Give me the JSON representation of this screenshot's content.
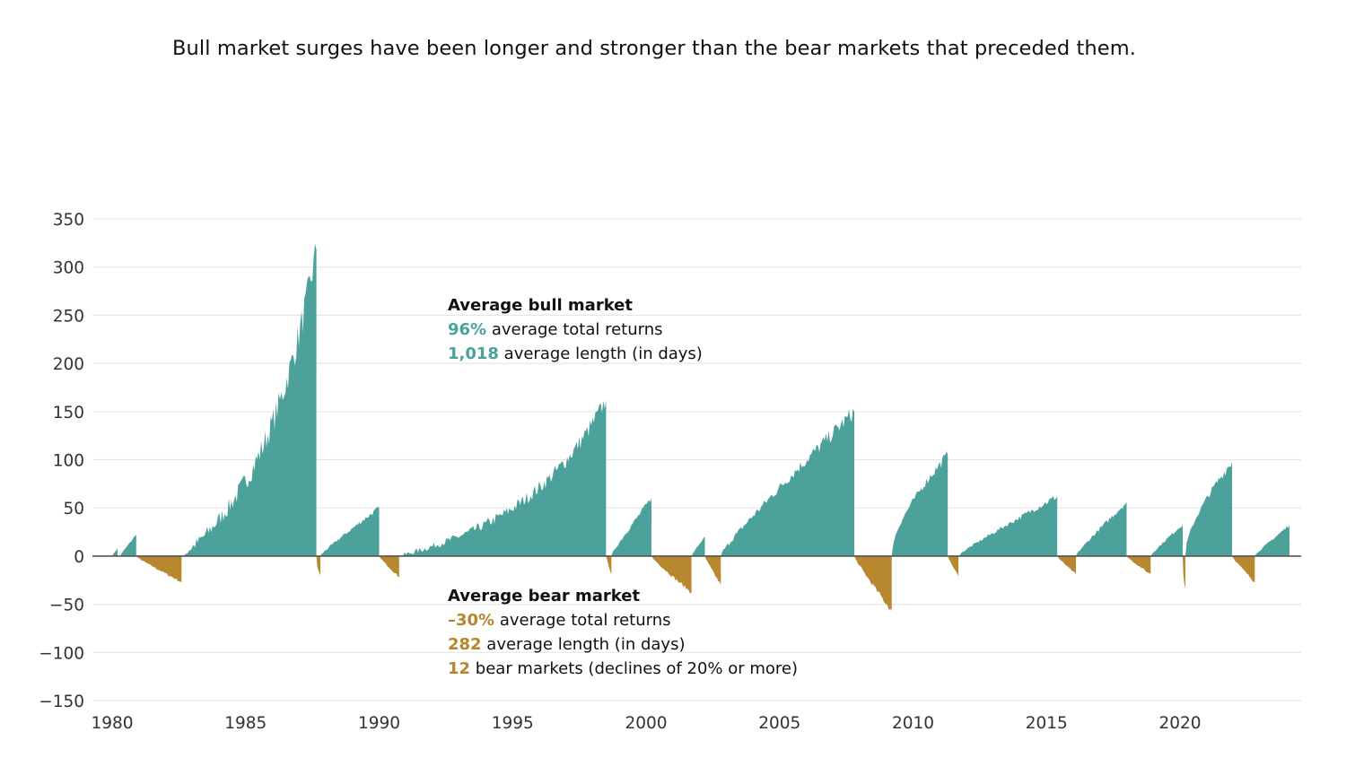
{
  "headline": "Bull market surges have been longer and stronger than the bear markets that preceded them.",
  "colors": {
    "bull": "#4da19b",
    "bear": "#b8882e",
    "grid": "#e6e6e6",
    "zero": "#555555"
  },
  "annotations": {
    "bull": {
      "title": "Average bull market",
      "lines": [
        {
          "value": "96%",
          "text": " average total returns"
        },
        {
          "value": "1,018",
          "text": " average length (in days)"
        }
      ]
    },
    "bear": {
      "title": "Average bear market",
      "lines": [
        {
          "value": "–30%",
          "text": " average total returns"
        },
        {
          "value": "282",
          "text": " average length (in days)"
        },
        {
          "value": "12",
          "text": " bear markets (declines of 20% or more)"
        }
      ]
    }
  },
  "chart_data": {
    "type": "area",
    "title": "",
    "xlabel": "",
    "ylabel": "",
    "xlim": [
      1980,
      2024.5
    ],
    "ylim": [
      -150,
      350
    ],
    "grid": true,
    "legend": "none",
    "y_ticks": [
      "350",
      "300",
      "250",
      "200",
      "150",
      "100",
      "50",
      "0",
      "−50",
      "−100",
      "−150"
    ],
    "y_tick_values": [
      350,
      300,
      250,
      200,
      150,
      100,
      50,
      0,
      -50,
      -100,
      -150
    ],
    "x_ticks": [
      "1980",
      "1985",
      "1990",
      "1995",
      "2000",
      "2005",
      "2010",
      "2015",
      "2020"
    ],
    "x_tick_values": [
      1980,
      1985,
      1990,
      1995,
      2000,
      2005,
      2010,
      2015,
      2020
    ],
    "series": [
      {
        "name": "bull",
        "start": 1980.0,
        "end": 1980.2,
        "peak": 8,
        "shape": "rise"
      },
      {
        "name": "bull",
        "start": 1980.3,
        "end": 1980.9,
        "peak": 22,
        "shape": "rise"
      },
      {
        "name": "bear",
        "start": 1980.9,
        "end": 1982.6,
        "trough": -27,
        "shape": "fall"
      },
      {
        "name": "bull",
        "start": 1982.6,
        "end": 1987.65,
        "peak": 318,
        "shape": "exp"
      },
      {
        "name": "bear",
        "start": 1987.65,
        "end": 1987.8,
        "trough": -20,
        "shape": "crash"
      },
      {
        "name": "bull",
        "start": 1987.8,
        "end": 1990.0,
        "peak": 50,
        "shape": "rise"
      },
      {
        "name": "bear",
        "start": 1990.0,
        "end": 1990.75,
        "trough": -22,
        "shape": "fall"
      },
      {
        "name": "bull",
        "start": 1990.75,
        "end": 1998.5,
        "peak": 162,
        "shape": "exp"
      },
      {
        "name": "bear",
        "start": 1998.5,
        "end": 1998.7,
        "trough": -19,
        "shape": "fall"
      },
      {
        "name": "bull",
        "start": 1998.7,
        "end": 2000.2,
        "peak": 60,
        "shape": "rise"
      },
      {
        "name": "bear",
        "start": 2000.2,
        "end": 2001.7,
        "trough": -38,
        "shape": "fall"
      },
      {
        "name": "bull",
        "start": 2001.7,
        "end": 2002.2,
        "peak": 20,
        "shape": "rise"
      },
      {
        "name": "bear",
        "start": 2002.2,
        "end": 2002.8,
        "trough": -30,
        "shape": "fall"
      },
      {
        "name": "bull",
        "start": 2002.8,
        "end": 2007.8,
        "peak": 150,
        "shape": "rise"
      },
      {
        "name": "bear",
        "start": 2007.8,
        "end": 2009.2,
        "trough": -57,
        "shape": "fall"
      },
      {
        "name": "bull",
        "start": 2009.2,
        "end": 2011.3,
        "peak": 105,
        "shape": "log"
      },
      {
        "name": "bear",
        "start": 2011.3,
        "end": 2011.7,
        "trough": -21,
        "shape": "fall"
      },
      {
        "name": "bull",
        "start": 2011.7,
        "end": 2015.4,
        "peak": 62,
        "shape": "rise"
      },
      {
        "name": "bear",
        "start": 2015.4,
        "end": 2016.1,
        "trough": -19,
        "shape": "fall"
      },
      {
        "name": "bull",
        "start": 2016.1,
        "end": 2018.0,
        "peak": 56,
        "shape": "rise"
      },
      {
        "name": "bear",
        "start": 2018.0,
        "end": 2018.9,
        "trough": -19,
        "shape": "fall"
      },
      {
        "name": "bull",
        "start": 2018.9,
        "end": 2020.1,
        "peak": 33,
        "shape": "rise"
      },
      {
        "name": "bear",
        "start": 2020.1,
        "end": 2020.2,
        "trough": -34,
        "shape": "crash"
      },
      {
        "name": "bull",
        "start": 2020.2,
        "end": 2021.95,
        "peak": 98,
        "shape": "log"
      },
      {
        "name": "bear",
        "start": 2021.95,
        "end": 2022.8,
        "trough": -27,
        "shape": "fall"
      },
      {
        "name": "bull",
        "start": 2022.8,
        "end": 2024.1,
        "peak": 32,
        "shape": "rise"
      }
    ]
  }
}
